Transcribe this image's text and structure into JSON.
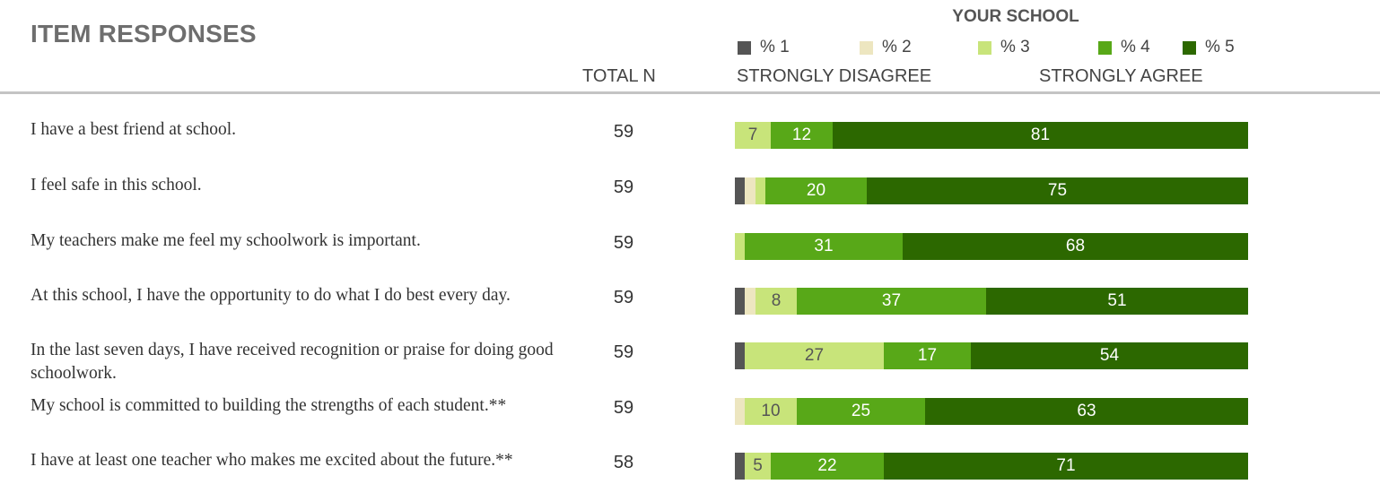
{
  "header": {
    "title": "ITEM RESPONSES",
    "school_label": "YOUR SCHOOL",
    "total_n_label": "TOTAL N",
    "scale_low": "STRONGLY DISAGREE",
    "scale_high": "STRONGLY AGREE"
  },
  "legend": [
    {
      "label": "% 1",
      "color": "#555555"
    },
    {
      "label": "% 2",
      "color": "#ede6c0"
    },
    {
      "label": "% 3",
      "color": "#c8e47a"
    },
    {
      "label": "% 4",
      "color": "#58a818"
    },
    {
      "label": "% 5",
      "color": "#2c6800"
    }
  ],
  "chart_data": {
    "type": "bar",
    "orientation": "horizontal",
    "stacked": true,
    "xlim": [
      0,
      100
    ],
    "series_names": [
      "% 1",
      "% 2",
      "% 3",
      "% 4",
      "% 5"
    ],
    "rows": [
      {
        "label": "I have a best friend at school.",
        "n": "59",
        "values": [
          0,
          0,
          7,
          12,
          81
        ],
        "labels": [
          "",
          "",
          "7",
          "12",
          "81"
        ]
      },
      {
        "label": "I feel safe in this school.",
        "n": "59",
        "values": [
          2,
          2,
          2,
          20,
          75
        ],
        "labels": [
          "",
          "",
          "",
          "20",
          "75"
        ]
      },
      {
        "label": "My teachers make me feel my schoolwork is important.",
        "n": "59",
        "values": [
          0,
          0,
          2,
          31,
          68
        ],
        "labels": [
          "",
          "",
          "",
          "31",
          "68"
        ]
      },
      {
        "label": "At this school, I have the opportunity to do what I do best every day.",
        "n": "59",
        "values": [
          2,
          2,
          8,
          37,
          51
        ],
        "labels": [
          "",
          "",
          "8",
          "37",
          "51"
        ]
      },
      {
        "label": "In the last seven days, I have received recognition or praise for doing good schoolwork.",
        "n": "59",
        "values": [
          2,
          0,
          27,
          17,
          54
        ],
        "labels": [
          "",
          "",
          "27",
          "17",
          "54"
        ]
      },
      {
        "label": "My school is committed to building the strengths of each student.**",
        "n": "59",
        "values": [
          0,
          2,
          10,
          25,
          63
        ],
        "labels": [
          "",
          "",
          "10",
          "25",
          "63"
        ]
      },
      {
        "label": "I have at least one teacher who makes me excited about the future.**",
        "n": "58",
        "values": [
          2,
          0,
          5,
          22,
          71
        ],
        "labels": [
          "",
          "",
          "5",
          "22",
          "71"
        ]
      }
    ]
  }
}
